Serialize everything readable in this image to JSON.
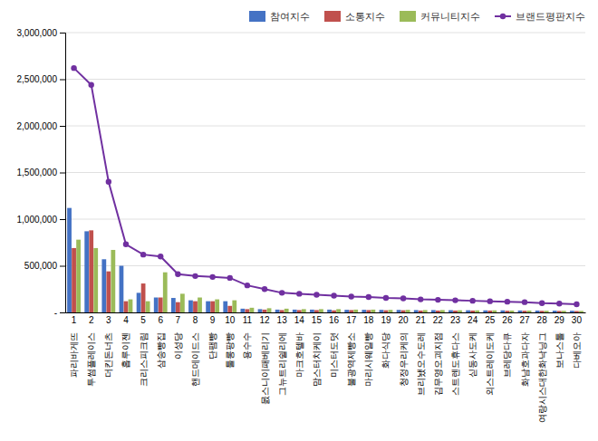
{
  "chart_data": {
    "type": "bar",
    "categories": [
      [
        "1",
        "파리바게뜨"
      ],
      [
        "2",
        "투썸플레이스"
      ],
      [
        "3",
        "더킨돈너츠"
      ],
      [
        "4",
        "홉루이젠"
      ],
      [
        "5",
        "크리스피크림"
      ],
      [
        "6",
        "삼송빵집"
      ],
      [
        "7",
        "이성당"
      ],
      [
        "8",
        "핸드메이드스"
      ],
      [
        "9",
        "단팸빵"
      ],
      [
        "10",
        "툴롱팡빵"
      ],
      [
        "11",
        "용수수"
      ],
      [
        "12",
        "몴스니이패베리기"
      ],
      [
        "13",
        "그뉴트리쉴리에"
      ],
      [
        "14",
        "마크호텔바"
      ],
      [
        "15",
        "맘스터치케이"
      ],
      [
        "16",
        "미스터도덧"
      ],
      [
        "17",
        "불광역제빵소"
      ],
      [
        "18",
        "마리시웨일빵"
      ],
      [
        "19",
        "화다식당"
      ],
      [
        "20",
        "청정우리케의"
      ],
      [
        "21",
        "브리뇄오수도레"
      ],
      [
        "22",
        "김무영오괴지점"
      ],
      [
        "23",
        "스트렌도휴다스"
      ],
      [
        "24",
        "싣동사도케"
      ],
      [
        "25",
        "외스트레이도케"
      ],
      [
        "26",
        "브레당다큐"
      ],
      [
        "27",
        "화남호과다자"
      ],
      [
        "28",
        "여랑시스대한화낙닝그"
      ],
      [
        "29",
        "보나스톨"
      ],
      [
        "30",
        "다베오아"
      ]
    ],
    "series": [
      {
        "name": "참여지수",
        "type": "bar",
        "color": "#4472C4",
        "values": [
          1120000,
          870000,
          570000,
          500000,
          210000,
          160000,
          155000,
          130000,
          120000,
          120000,
          40000,
          35000,
          30000,
          30000,
          30000,
          30000,
          28000,
          28000,
          27000,
          27000,
          25000,
          25000,
          24000,
          23000,
          22000,
          22000,
          21000,
          20000,
          19000,
          18000
        ]
      },
      {
        "name": "소통지수",
        "type": "bar",
        "color": "#C0504D",
        "values": [
          690000,
          880000,
          440000,
          120000,
          310000,
          160000,
          110000,
          120000,
          120000,
          70000,
          35000,
          30000,
          25000,
          25000,
          25000,
          22000,
          25000,
          25000,
          23000,
          23000,
          20000,
          20000,
          20000,
          20000,
          20000,
          18000,
          18000,
          17000,
          16000,
          15000
        ]
      },
      {
        "name": "커뮤니티지수",
        "type": "bar",
        "color": "#9BBB59",
        "values": [
          780000,
          690000,
          670000,
          140000,
          120000,
          430000,
          200000,
          160000,
          140000,
          130000,
          50000,
          45000,
          40000,
          35000,
          35000,
          35000,
          30000,
          30000,
          27000,
          27000,
          25000,
          25000,
          23000,
          22000,
          22000,
          20000,
          20000,
          18000,
          17000,
          16000
        ]
      },
      {
        "name": "브랜드평판지수",
        "type": "line",
        "color": "#7030A0",
        "marker": "circle",
        "values": [
          2620000,
          2440000,
          1400000,
          730000,
          620000,
          600000,
          410000,
          390000,
          380000,
          370000,
          290000,
          250000,
          210000,
          200000,
          190000,
          180000,
          170000,
          165000,
          155000,
          150000,
          140000,
          135000,
          130000,
          125000,
          120000,
          115000,
          110000,
          100000,
          95000,
          88000
        ]
      }
    ],
    "ylim": [
      0,
      3000000
    ],
    "yticks": [
      {
        "value": 0,
        "label": "-"
      },
      {
        "value": 500000,
        "label": "500,000"
      },
      {
        "value": 1000000,
        "label": "1,000,000"
      },
      {
        "value": 1500000,
        "label": "1,500,000"
      },
      {
        "value": 2000000,
        "label": "2,000,000"
      },
      {
        "value": 2500000,
        "label": "2,500,000"
      },
      {
        "value": 3000000,
        "label": "3,000,000"
      }
    ],
    "grid": true,
    "legend": "upper right"
  }
}
